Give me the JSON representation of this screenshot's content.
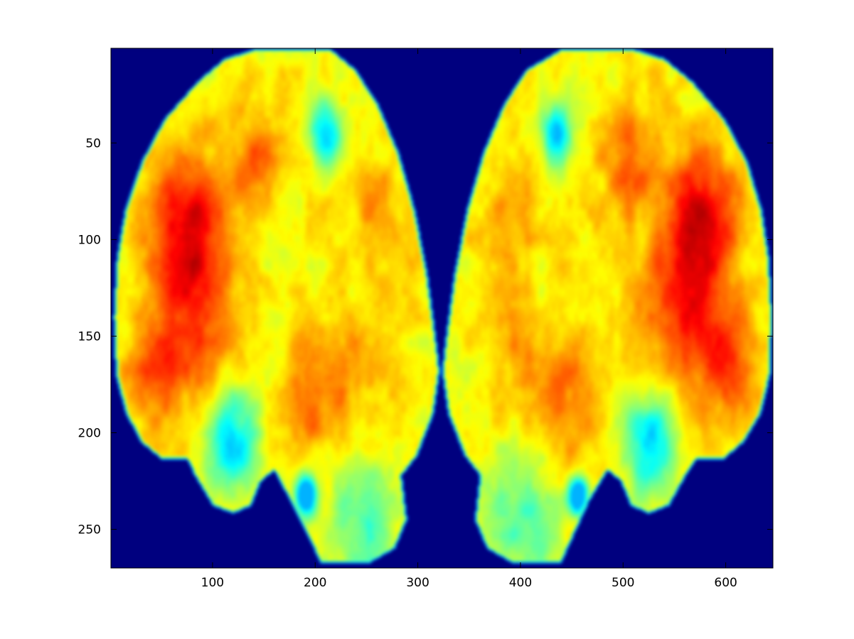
{
  "chart_data": {
    "type": "heatmap",
    "title": "",
    "xlabel": "",
    "ylabel": "",
    "xlim": [
      1,
      646
    ],
    "ylim": [
      270,
      1
    ],
    "y_direction": "reversed",
    "colormap": "jet",
    "background_value_color": "#00007f",
    "grid": false,
    "legend": "none",
    "x_ticks": [
      {
        "value": 100,
        "label": "100"
      },
      {
        "value": 200,
        "label": "200"
      },
      {
        "value": 300,
        "label": "300"
      },
      {
        "value": 400,
        "label": "400"
      },
      {
        "value": 500,
        "label": "500"
      },
      {
        "value": 600,
        "label": "600"
      }
    ],
    "y_ticks": [
      {
        "value": 50,
        "label": "50"
      },
      {
        "value": 100,
        "label": "100"
      },
      {
        "value": 150,
        "label": "150"
      },
      {
        "value": 200,
        "label": "200"
      },
      {
        "value": 250,
        "label": "250"
      }
    ],
    "regions": [
      {
        "name": "left-hemisphere",
        "outline": [
          [
            142,
            1
          ],
          [
            215,
            1
          ],
          [
            240,
            12
          ],
          [
            262,
            30
          ],
          [
            282,
            55
          ],
          [
            298,
            85
          ],
          [
            310,
            118
          ],
          [
            318,
            150
          ],
          [
            322,
            168
          ],
          [
            316,
            190
          ],
          [
            300,
            212
          ],
          [
            285,
            222
          ],
          [
            290,
            245
          ],
          [
            278,
            260
          ],
          [
            252,
            268
          ],
          [
            205,
            268
          ],
          [
            195,
            256
          ],
          [
            175,
            235
          ],
          [
            160,
            220
          ],
          [
            148,
            225
          ],
          [
            138,
            238
          ],
          [
            120,
            242
          ],
          [
            100,
            238
          ],
          [
            82,
            222
          ],
          [
            75,
            214
          ],
          [
            50,
            214
          ],
          [
            30,
            205
          ],
          [
            15,
            190
          ],
          [
            5,
            170
          ],
          [
            3,
            140
          ],
          [
            6,
            110
          ],
          [
            14,
            85
          ],
          [
            30,
            60
          ],
          [
            52,
            38
          ],
          [
            85,
            18
          ],
          [
            112,
            6
          ]
        ],
        "hotspots": [
          {
            "x": 70,
            "y": 85,
            "r": 35,
            "v": 0.95
          },
          {
            "x": 85,
            "y": 130,
            "r": 40,
            "v": 0.92
          },
          {
            "x": 45,
            "y": 165,
            "r": 30,
            "v": 0.88
          },
          {
            "x": 140,
            "y": 60,
            "r": 30,
            "v": 0.85
          },
          {
            "x": 260,
            "y": 90,
            "r": 30,
            "v": 0.82
          },
          {
            "x": 200,
            "y": 180,
            "r": 35,
            "v": 0.85
          },
          {
            "x": 250,
            "y": 160,
            "r": 30,
            "v": 0.78
          }
        ],
        "coolspots": [
          {
            "x": 210,
            "y": 45,
            "r": 15,
            "v": 0.45
          },
          {
            "x": 120,
            "y": 205,
            "r": 25,
            "v": 0.48
          },
          {
            "x": 245,
            "y": 245,
            "r": 35,
            "v": 0.58
          },
          {
            "x": 190,
            "y": 232,
            "r": 10,
            "v": 0.3
          }
        ]
      },
      {
        "name": "right-hemisphere",
        "outline": [
          [
            440,
            1
          ],
          [
            510,
            1
          ],
          [
            540,
            6
          ],
          [
            568,
            18
          ],
          [
            600,
            38
          ],
          [
            622,
            60
          ],
          [
            636,
            85
          ],
          [
            643,
            110
          ],
          [
            646,
            140
          ],
          [
            644,
            170
          ],
          [
            635,
            190
          ],
          [
            618,
            205
          ],
          [
            598,
            214
          ],
          [
            572,
            214
          ],
          [
            562,
            222
          ],
          [
            545,
            238
          ],
          [
            525,
            242
          ],
          [
            507,
            238
          ],
          [
            497,
            225
          ],
          [
            485,
            220
          ],
          [
            468,
            235
          ],
          [
            450,
            256
          ],
          [
            440,
            268
          ],
          [
            393,
            268
          ],
          [
            367,
            260
          ],
          [
            355,
            245
          ],
          [
            360,
            222
          ],
          [
            345,
            212
          ],
          [
            329,
            190
          ],
          [
            323,
            168
          ],
          [
            327,
            150
          ],
          [
            335,
            118
          ],
          [
            347,
            85
          ],
          [
            363,
            55
          ],
          [
            383,
            30
          ],
          [
            405,
            12
          ]
        ],
        "hotspots": [
          {
            "x": 575,
            "y": 85,
            "r": 35,
            "v": 0.95
          },
          {
            "x": 560,
            "y": 130,
            "r": 40,
            "v": 0.92
          },
          {
            "x": 600,
            "y": 165,
            "r": 30,
            "v": 0.88
          },
          {
            "x": 505,
            "y": 60,
            "r": 30,
            "v": 0.85
          },
          {
            "x": 385,
            "y": 90,
            "r": 30,
            "v": 0.82
          },
          {
            "x": 445,
            "y": 180,
            "r": 35,
            "v": 0.85
          },
          {
            "x": 395,
            "y": 160,
            "r": 30,
            "v": 0.78
          }
        ],
        "coolspots": [
          {
            "x": 435,
            "y": 45,
            "r": 15,
            "v": 0.45
          },
          {
            "x": 525,
            "y": 205,
            "r": 25,
            "v": 0.48
          },
          {
            "x": 400,
            "y": 245,
            "r": 35,
            "v": 0.58
          },
          {
            "x": 455,
            "y": 232,
            "r": 10,
            "v": 0.3
          }
        ]
      }
    ]
  }
}
